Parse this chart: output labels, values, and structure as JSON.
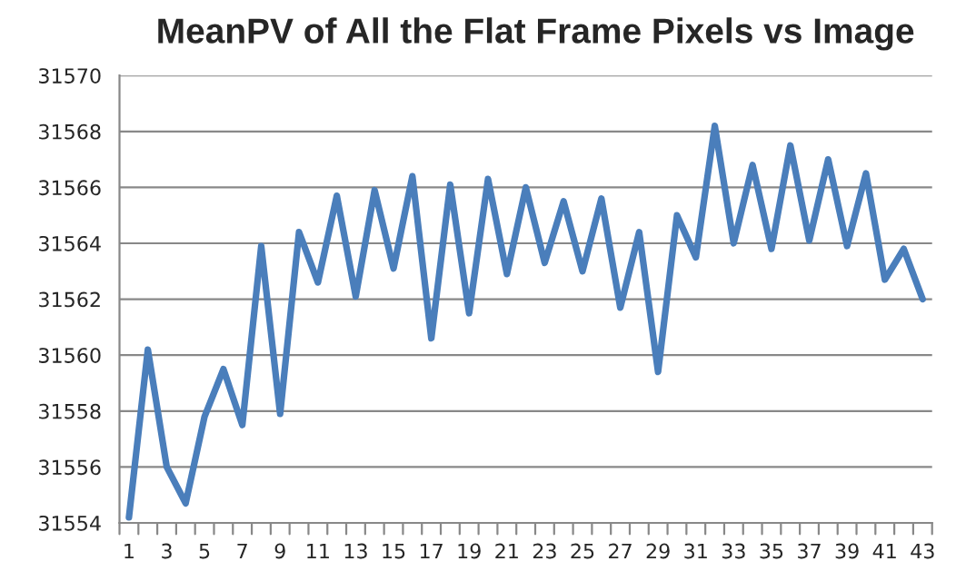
{
  "chart_data": {
    "type": "line",
    "title": "MeanPV of All the Flat Frame Pixels vs Image",
    "categories": [
      "1",
      null,
      "3",
      null,
      "5",
      null,
      "7",
      null,
      "9",
      null,
      "11",
      null,
      "13",
      null,
      "15",
      null,
      "17",
      null,
      "19",
      null,
      "21",
      null,
      "23",
      null,
      "25",
      null,
      "27",
      null,
      "29",
      null,
      "31",
      null,
      "33",
      null,
      "35",
      null,
      "37",
      null,
      "39",
      null,
      "41",
      null,
      "43"
    ],
    "series": [
      {
        "color": "#4a7ebb",
        "values": [
          31554.2,
          31560.2,
          31556.0,
          31554.7,
          31557.8,
          31559.5,
          31557.5,
          31563.9,
          31557.9,
          31564.4,
          31562.6,
          31565.7,
          31562.1,
          31565.9,
          31563.1,
          31566.4,
          31560.6,
          31566.1,
          31561.5,
          31566.3,
          31562.9,
          31566.0,
          31563.3,
          31565.5,
          31563.0,
          31565.6,
          31561.7,
          31564.4,
          31559.4,
          31565.0,
          31563.5,
          31568.2,
          31564.0,
          31566.8,
          31563.8,
          31567.5,
          31564.1,
          31567.0,
          31563.9,
          31566.5,
          31562.7,
          31563.8,
          31562.0
        ]
      }
    ],
    "ylim": [
      31554,
      31570
    ],
    "yticks": [
      31554,
      31556,
      31558,
      31560,
      31562,
      31564,
      31566,
      31568,
      31570
    ],
    "grid": "y",
    "legend": false,
    "marker": "none",
    "line_style": "solid"
  }
}
